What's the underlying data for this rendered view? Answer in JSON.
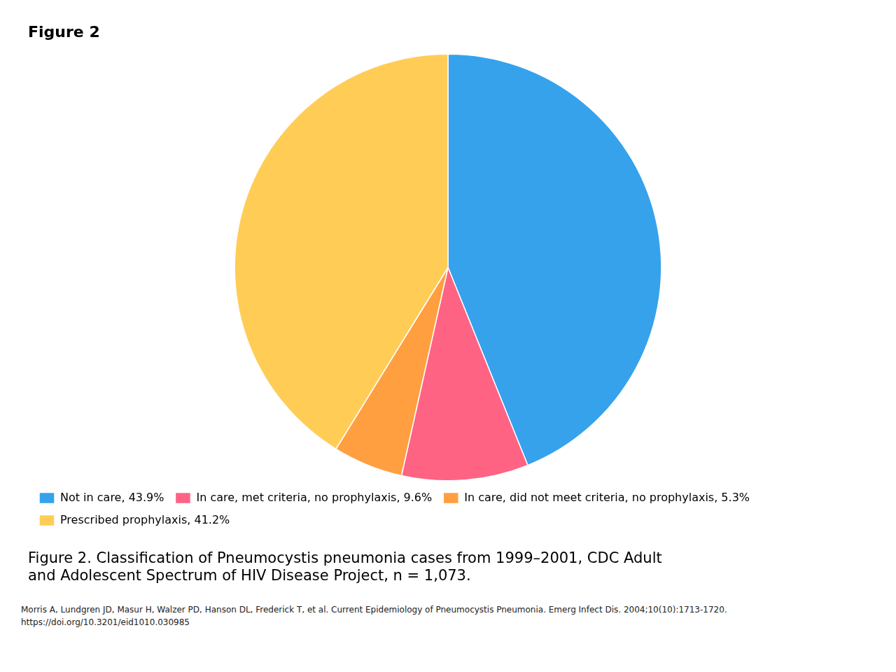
{
  "chart_data": {
    "type": "pie",
    "title": "Figure 2",
    "subtitle": [
      "Figure 2. Classification of Pneumocystis pneumonia cases from 1999–2001, CDC Adult",
      "and Adolescent Spectrum of HIV Disease Project, n = 1,073."
    ],
    "categories": [
      "Not in care, 43.9%",
      "In care, met criteria, no prophylaxis, 9.6%",
      "In care, did not meet criteria, no prophylaxis, 5.3%",
      "Prescribed prophylaxis, 41.2%"
    ],
    "values": [
      43.9,
      9.6,
      5.3,
      41.2
    ],
    "legend": "bottom",
    "annotations": [
      "Morris A, Lundgren JD, Masur H, Walzer PD, Hanson DL, Frederick T, et al. Current Epidemiology of Pneumocystis Pneumonia. Emerg Infect Dis. 2004;10(10):1713-1720.",
      "https://doi.org/10.3201/eid1010.030985"
    ]
  }
}
